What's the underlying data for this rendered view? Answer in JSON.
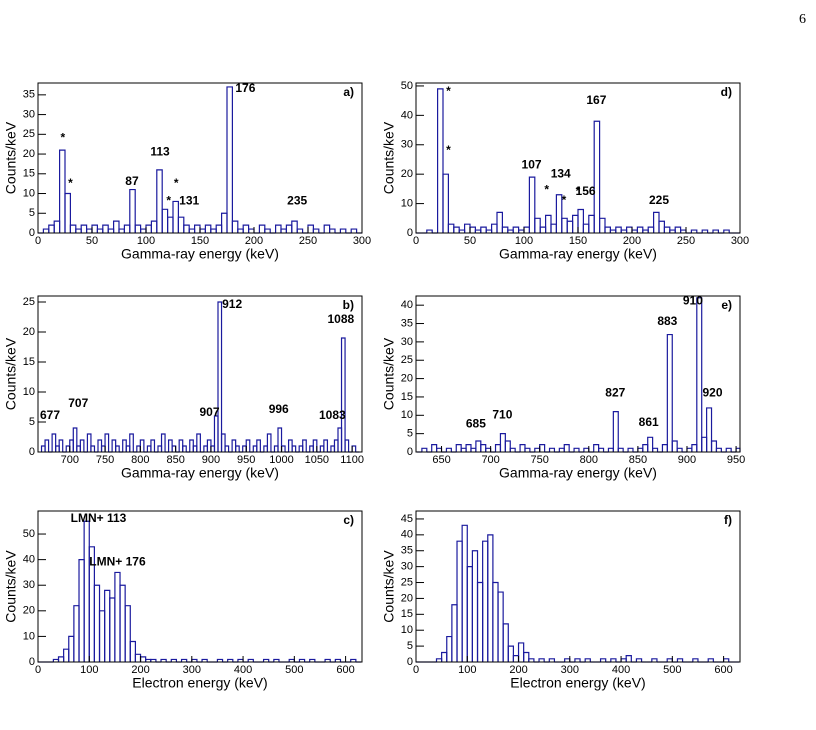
{
  "page_number": "6",
  "chart_data": [
    {
      "type": "histogram",
      "label": "a)",
      "xlabel": "Gamma-ray energy (keV)",
      "ylabel": "Counts/keV",
      "color": "#1a1a9e",
      "xlim": [
        0,
        300
      ],
      "xticks": [
        0,
        50,
        100,
        150,
        200,
        250,
        300
      ],
      "ylim": [
        0,
        38
      ],
      "yticks": [
        0,
        5,
        10,
        15,
        20,
        25,
        30,
        35
      ],
      "bins": [
        0,
        5,
        10,
        15,
        20,
        25,
        30,
        35,
        40,
        45,
        50,
        55,
        60,
        65,
        70,
        75,
        80,
        85,
        90,
        95,
        100,
        105,
        110,
        115,
        120,
        125,
        130,
        135,
        140,
        145,
        150,
        155,
        160,
        165,
        170,
        175,
        180,
        185,
        190,
        195,
        200,
        205,
        210,
        215,
        220,
        225,
        230,
        235,
        240,
        245,
        250,
        255,
        260,
        265,
        270,
        275,
        280,
        285,
        290,
        295,
        300
      ],
      "counts": [
        0,
        1,
        2,
        3,
        21,
        10,
        2,
        1,
        2,
        1,
        2,
        1,
        2,
        1,
        3,
        1,
        2,
        11,
        2,
        1,
        2,
        3,
        16,
        6,
        4,
        8,
        4,
        2,
        1,
        2,
        1,
        2,
        1,
        2,
        5,
        37,
        3,
        1,
        2,
        1,
        0,
        2,
        1,
        0,
        2,
        1,
        2,
        3,
        1,
        0,
        2,
        1,
        0,
        2,
        1,
        0,
        1,
        0,
        1,
        0
      ],
      "annotations": [
        {
          "text": "*",
          "x": 23,
          "y": 24
        },
        {
          "text": "*",
          "x": 30,
          "y": 12.5
        },
        {
          "text": "87",
          "x": 87,
          "y": 13
        },
        {
          "text": "113",
          "x": 113,
          "y": 20.5
        },
        {
          "text": "*",
          "x": 121,
          "y": 8
        },
        {
          "text": "*",
          "x": 128,
          "y": 12.5
        },
        {
          "text": "131",
          "x": 140,
          "y": 8
        },
        {
          "text": "176",
          "x": 192,
          "y": 36.5
        },
        {
          "text": "235",
          "x": 240,
          "y": 8
        }
      ]
    },
    {
      "type": "histogram",
      "label": "b)",
      "xlabel": "Gamma-ray energy (keV)",
      "ylabel": "Counts/keV",
      "color": "#1a1a9e",
      "xlim": [
        655,
        1114
      ],
      "xticks": [
        700,
        750,
        800,
        850,
        900,
        950,
        1000,
        1050,
        1100
      ],
      "ylim": [
        0,
        26
      ],
      "yticks": [
        0,
        5,
        10,
        15,
        20,
        25
      ],
      "bins": [
        660,
        665,
        670,
        675,
        680,
        685,
        690,
        695,
        700,
        705,
        710,
        715,
        720,
        725,
        730,
        735,
        740,
        745,
        750,
        755,
        760,
        765,
        770,
        775,
        780,
        785,
        790,
        795,
        800,
        805,
        810,
        815,
        820,
        825,
        830,
        835,
        840,
        845,
        850,
        855,
        860,
        865,
        870,
        875,
        880,
        885,
        890,
        895,
        900,
        905,
        910,
        915,
        920,
        925,
        930,
        935,
        940,
        945,
        950,
        955,
        960,
        965,
        970,
        975,
        980,
        985,
        990,
        995,
        1000,
        1005,
        1010,
        1015,
        1020,
        1025,
        1030,
        1035,
        1040,
        1045,
        1050,
        1055,
        1060,
        1065,
        1070,
        1075,
        1080,
        1085,
        1090,
        1095,
        1100,
        1105,
        1110
      ],
      "counts": [
        1,
        2,
        0,
        3,
        1,
        2,
        0,
        1,
        2,
        4,
        1,
        2,
        0,
        3,
        1,
        0,
        2,
        1,
        3,
        0,
        2,
        1,
        0,
        2,
        1,
        3,
        0,
        1,
        2,
        0,
        1,
        2,
        0,
        1,
        3,
        0,
        2,
        1,
        0,
        2,
        1,
        0,
        2,
        1,
        3,
        0,
        1,
        2,
        1,
        6,
        25,
        3,
        1,
        0,
        2,
        1,
        0,
        1,
        2,
        0,
        1,
        2,
        0,
        1,
        3,
        0,
        1,
        4,
        1,
        0,
        2,
        1,
        0,
        1,
        2,
        0,
        1,
        2,
        0,
        1,
        2,
        0,
        1,
        2,
        4,
        19,
        2,
        0,
        1,
        0
      ],
      "annotations": [
        {
          "text": "677",
          "x": 672,
          "y": 6
        },
        {
          "text": "707",
          "x": 712,
          "y": 8
        },
        {
          "text": "907",
          "x": 898,
          "y": 6.5
        },
        {
          "text": "912",
          "x": 930,
          "y": 24.5
        },
        {
          "text": "996",
          "x": 996,
          "y": 7
        },
        {
          "text": "1083",
          "x": 1072,
          "y": 6
        },
        {
          "text": "1088",
          "x": 1084,
          "y": 22
        }
      ]
    },
    {
      "type": "histogram",
      "label": "c)",
      "xlabel": "Electron energy (keV)",
      "ylabel": "Counts/keV",
      "color": "#1a1a9e",
      "xlim": [
        0,
        632
      ],
      "xticks": [
        0,
        100,
        200,
        300,
        400,
        500,
        600
      ],
      "ylim": [
        0,
        59
      ],
      "yticks": [
        0,
        10,
        20,
        30,
        40,
        50
      ],
      "bins": [
        0,
        10,
        20,
        30,
        40,
        50,
        60,
        70,
        80,
        90,
        100,
        110,
        120,
        130,
        140,
        150,
        160,
        170,
        180,
        190,
        200,
        210,
        220,
        230,
        240,
        250,
        260,
        270,
        280,
        290,
        300,
        310,
        320,
        330,
        340,
        350,
        360,
        370,
        380,
        390,
        400,
        410,
        420,
        430,
        440,
        450,
        460,
        470,
        480,
        490,
        500,
        510,
        520,
        530,
        540,
        550,
        560,
        570,
        580,
        590,
        600,
        610,
        620,
        630
      ],
      "counts": [
        0,
        0,
        0,
        1,
        2,
        5,
        10,
        22,
        40,
        55,
        45,
        30,
        20,
        28,
        25,
        35,
        30,
        22,
        8,
        3,
        2,
        1,
        1,
        0,
        1,
        0,
        1,
        0,
        1,
        0,
        1,
        0,
        1,
        0,
        0,
        1,
        0,
        1,
        0,
        1,
        0,
        1,
        0,
        0,
        1,
        0,
        1,
        0,
        0,
        1,
        0,
        1,
        0,
        1,
        0,
        0,
        1,
        0,
        1,
        0,
        0,
        1,
        0
      ],
      "annotations": [
        {
          "text": "LMN+ 113",
          "x": 118,
          "y": 56
        },
        {
          "text": "LMN+ 176",
          "x": 155,
          "y": 39
        }
      ]
    },
    {
      "type": "histogram",
      "label": "d)",
      "xlabel": "Gamma-ray energy (keV)",
      "ylabel": "Counts/keV",
      "color": "#1a1a9e",
      "xlim": [
        0,
        300
      ],
      "xticks": [
        0,
        50,
        100,
        150,
        200,
        250,
        300
      ],
      "ylim": [
        0,
        51
      ],
      "yticks": [
        0,
        10,
        20,
        30,
        40,
        50
      ],
      "bins": [
        0,
        5,
        10,
        15,
        20,
        25,
        30,
        35,
        40,
        45,
        50,
        55,
        60,
        65,
        70,
        75,
        80,
        85,
        90,
        95,
        100,
        105,
        110,
        115,
        120,
        125,
        130,
        135,
        140,
        145,
        150,
        155,
        160,
        165,
        170,
        175,
        180,
        185,
        190,
        195,
        200,
        205,
        210,
        215,
        220,
        225,
        230,
        235,
        240,
        245,
        250,
        255,
        260,
        265,
        270,
        275,
        280,
        285,
        290,
        295,
        300
      ],
      "counts": [
        0,
        0,
        1,
        0,
        49,
        20,
        3,
        2,
        1,
        3,
        2,
        1,
        2,
        1,
        3,
        7,
        2,
        1,
        2,
        1,
        2,
        19,
        5,
        2,
        6,
        3,
        13,
        5,
        4,
        6,
        8,
        3,
        6,
        38,
        5,
        2,
        1,
        2,
        1,
        2,
        1,
        2,
        1,
        2,
        7,
        4,
        2,
        1,
        2,
        1,
        0,
        1,
        0,
        1,
        0,
        1,
        0,
        1,
        0,
        0
      ],
      "annotations": [
        {
          "text": "*",
          "x": 30,
          "y": 48
        },
        {
          "text": "*",
          "x": 30,
          "y": 28
        },
        {
          "text": "107",
          "x": 107,
          "y": 23
        },
        {
          "text": "*",
          "x": 121,
          "y": 14.5
        },
        {
          "text": "134",
          "x": 134,
          "y": 20
        },
        {
          "text": "*",
          "x": 137,
          "y": 11
        },
        {
          "text": "*",
          "x": 150,
          "y": 14
        },
        {
          "text": "156",
          "x": 157,
          "y": 14
        },
        {
          "text": "167",
          "x": 167,
          "y": 45
        },
        {
          "text": "225",
          "x": 225,
          "y": 11
        }
      ]
    },
    {
      "type": "histogram",
      "label": "e)",
      "xlabel": "Gamma-ray energy (keV)",
      "ylabel": "Counts/keV",
      "color": "#1a1a9e",
      "xlim": [
        624,
        954
      ],
      "xticks": [
        650,
        700,
        750,
        800,
        850,
        900,
        950
      ],
      "ylim": [
        0,
        42.5
      ],
      "yticks": [
        0,
        5,
        10,
        15,
        20,
        25,
        30,
        35,
        40
      ],
      "bins": [
        625,
        630,
        635,
        640,
        645,
        650,
        655,
        660,
        665,
        670,
        675,
        680,
        685,
        690,
        695,
        700,
        705,
        710,
        715,
        720,
        725,
        730,
        735,
        740,
        745,
        750,
        755,
        760,
        765,
        770,
        775,
        780,
        785,
        790,
        795,
        800,
        805,
        810,
        815,
        820,
        825,
        830,
        835,
        840,
        845,
        850,
        855,
        860,
        865,
        870,
        875,
        880,
        885,
        890,
        895,
        900,
        905,
        910,
        915,
        920,
        925,
        930,
        935,
        940,
        945,
        950,
        955
      ],
      "counts": [
        0,
        1,
        0,
        2,
        1,
        0,
        1,
        0,
        2,
        1,
        2,
        1,
        3,
        2,
        1,
        0,
        2,
        5,
        3,
        1,
        0,
        2,
        1,
        0,
        1,
        2,
        0,
        1,
        0,
        1,
        2,
        0,
        1,
        0,
        1,
        0,
        2,
        1,
        0,
        1,
        11,
        1,
        0,
        1,
        0,
        1,
        2,
        4,
        1,
        0,
        2,
        32,
        3,
        1,
        0,
        1,
        2,
        42,
        4,
        12,
        3,
        1,
        0,
        1,
        0,
        1
      ],
      "annotations": [
        {
          "text": "685",
          "x": 685,
          "y": 7.5
        },
        {
          "text": "710",
          "x": 712,
          "y": 10
        },
        {
          "text": "827",
          "x": 827,
          "y": 16
        },
        {
          "text": "861",
          "x": 861,
          "y": 8
        },
        {
          "text": "883",
          "x": 880,
          "y": 35.5
        },
        {
          "text": "910",
          "x": 906,
          "y": 41
        },
        {
          "text": "920",
          "x": 926,
          "y": 16
        }
      ]
    },
    {
      "type": "histogram",
      "label": "f)",
      "xlabel": "Electron energy (keV)",
      "ylabel": "Counts/keV",
      "color": "#1a1a9e",
      "xlim": [
        0,
        632
      ],
      "xticks": [
        0,
        100,
        200,
        300,
        400,
        500,
        600
      ],
      "ylim": [
        0,
        47.5
      ],
      "yticks": [
        0,
        5,
        10,
        15,
        20,
        25,
        30,
        35,
        40,
        45
      ],
      "bins": [
        0,
        10,
        20,
        30,
        40,
        50,
        60,
        70,
        80,
        90,
        100,
        110,
        120,
        130,
        140,
        150,
        160,
        170,
        180,
        190,
        200,
        210,
        220,
        230,
        240,
        250,
        260,
        270,
        280,
        290,
        300,
        310,
        320,
        330,
        340,
        350,
        360,
        370,
        380,
        390,
        400,
        410,
        420,
        430,
        440,
        450,
        460,
        470,
        480,
        490,
        500,
        510,
        520,
        530,
        540,
        550,
        560,
        570,
        580,
        590,
        600,
        610,
        620,
        630
      ],
      "counts": [
        0,
        0,
        0,
        0,
        1,
        3,
        8,
        18,
        38,
        43,
        30,
        35,
        25,
        38,
        40,
        25,
        22,
        12,
        5,
        2,
        6,
        3,
        1,
        0,
        1,
        0,
        1,
        0,
        0,
        1,
        0,
        1,
        0,
        1,
        0,
        0,
        1,
        0,
        1,
        0,
        1,
        2,
        0,
        1,
        0,
        0,
        1,
        0,
        0,
        1,
        0,
        1,
        0,
        0,
        1,
        0,
        0,
        1,
        0,
        0,
        1,
        0,
        0
      ],
      "annotations": []
    }
  ]
}
